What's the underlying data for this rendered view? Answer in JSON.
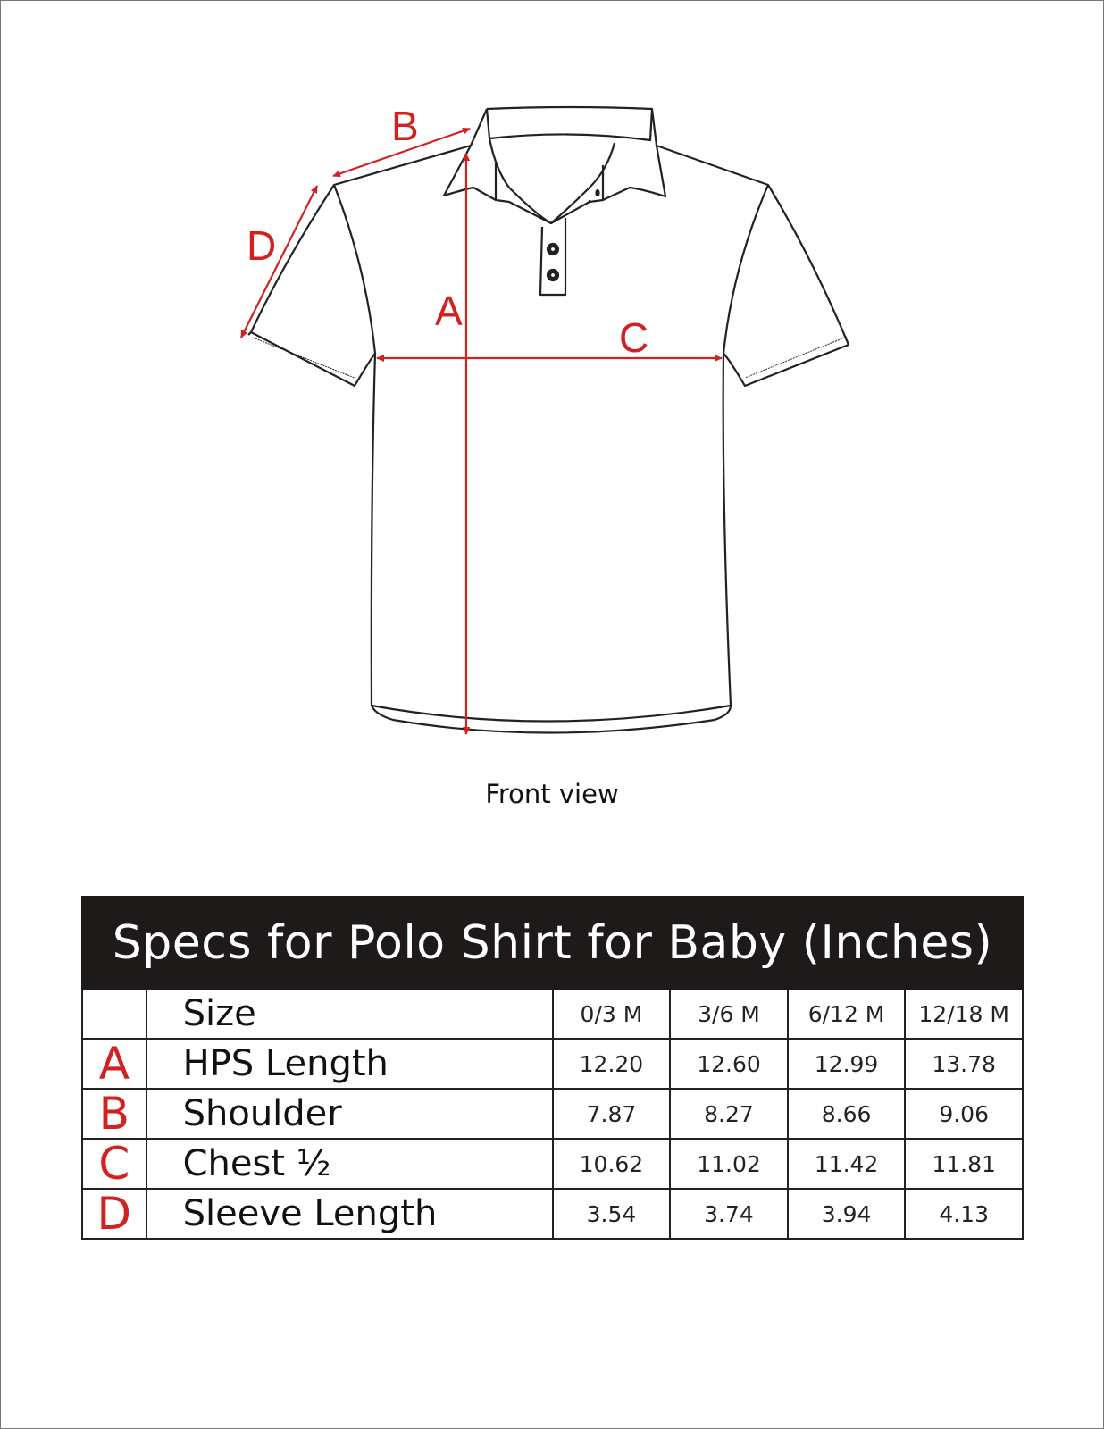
{
  "diagram": {
    "caption": "Front view",
    "measure_labels": {
      "A": "A",
      "B": "B",
      "C": "C",
      "D": "D"
    },
    "line_color": "#d32020",
    "outline_color": "#222222"
  },
  "table": {
    "title": "Specs for Polo Shirt for Baby (Inches)",
    "header": {
      "letter": "",
      "label": "Size",
      "sizes": [
        "0/3 M",
        "3/6 M",
        "6/12 M",
        "12/18 M"
      ]
    },
    "rows": [
      {
        "letter": "A",
        "label": "HPS Length",
        "values": [
          "12.20",
          "12.60",
          "12.99",
          "13.78"
        ]
      },
      {
        "letter": "B",
        "label": "Shoulder",
        "values": [
          "7.87",
          "8.27",
          "8.66",
          "9.06"
        ]
      },
      {
        "letter": "C",
        "label": "Chest ½",
        "values": [
          "10.62",
          "11.02",
          "11.42",
          "11.81"
        ]
      },
      {
        "letter": "D",
        "label": "Sleeve Length",
        "values": [
          "3.54",
          "3.74",
          "3.94",
          "4.13"
        ]
      }
    ]
  }
}
